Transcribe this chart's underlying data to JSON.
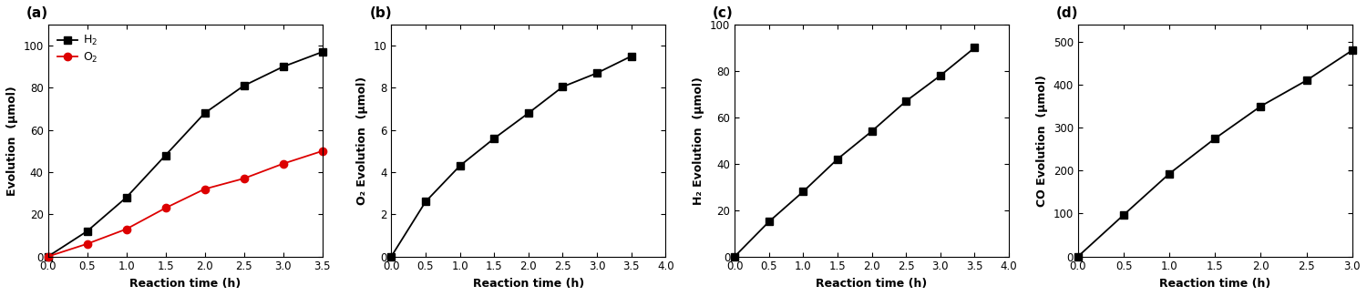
{
  "panel_a": {
    "label": "(a)",
    "h2_x": [
      0.0,
      0.5,
      1.0,
      1.5,
      2.0,
      2.5,
      3.0,
      3.5
    ],
    "h2_y": [
      0,
      12,
      28,
      48,
      68,
      81,
      90,
      97
    ],
    "o2_x": [
      0.0,
      0.5,
      1.0,
      1.5,
      2.0,
      2.5,
      3.0,
      3.5
    ],
    "o2_y": [
      0,
      6,
      13,
      23,
      32,
      37,
      44,
      50
    ],
    "xlabel": "Reaction time (h)",
    "ylabel": "Evolution  (μmol)",
    "ylim": [
      0,
      110
    ],
    "xticks": [
      0.0,
      0.5,
      1.0,
      1.5,
      2.0,
      2.5,
      3.0,
      3.5
    ],
    "yticks": [
      0,
      20,
      40,
      60,
      80,
      100
    ],
    "legend": [
      "H₂",
      "O₂"
    ]
  },
  "panel_b": {
    "label": "(b)",
    "x": [
      0.0,
      0.5,
      1.0,
      1.5,
      2.0,
      2.5,
      3.0,
      3.5
    ],
    "y": [
      0,
      2.6,
      4.3,
      5.6,
      6.8,
      8.05,
      8.7,
      9.5
    ],
    "xlabel": "Reaction time (h)",
    "ylabel": "O₂ Evolution  (μmol)",
    "ylim": [
      0,
      11
    ],
    "xticks": [
      0.0,
      0.5,
      1.0,
      1.5,
      2.0,
      2.5,
      3.0,
      3.5
    ],
    "yticks": [
      0,
      2,
      4,
      6,
      8,
      10
    ]
  },
  "panel_c": {
    "label": "(c)",
    "x": [
      0.0,
      0.5,
      1.0,
      1.5,
      2.0,
      2.5,
      3.0,
      3.5
    ],
    "y": [
      0,
      15,
      28,
      42,
      54,
      67,
      78,
      90
    ],
    "xlabel": "Reaction time (h)",
    "ylabel": "H₂ Evolution  (μmol)",
    "ylim": [
      0,
      100
    ],
    "xticks": [
      0.0,
      0.5,
      1.0,
      1.5,
      2.0,
      2.5,
      3.0,
      3.5,
      4.0
    ],
    "yticks": [
      0,
      20,
      40,
      60,
      80,
      100
    ]
  },
  "panel_d": {
    "label": "(d)",
    "x": [
      0.0,
      0.5,
      1.0,
      1.5,
      2.0,
      2.5,
      3.0
    ],
    "y": [
      0,
      97,
      193,
      275,
      350,
      410,
      480
    ],
    "xlabel": "Reaction time (h)",
    "ylabel": "CO Evolution  (μmol)",
    "ylim": [
      0,
      540
    ],
    "xticks": [
      0.0,
      0.5,
      1.0,
      1.5,
      2.0,
      2.5,
      3.0
    ],
    "yticks": [
      0,
      100,
      200,
      300,
      400,
      500
    ]
  },
  "line_color": "#000000",
  "red_color": "#dd0000",
  "marker_size": 6,
  "linewidth": 1.3,
  "font_size_label": 9,
  "font_size_tick": 8.5,
  "font_size_panel": 11
}
